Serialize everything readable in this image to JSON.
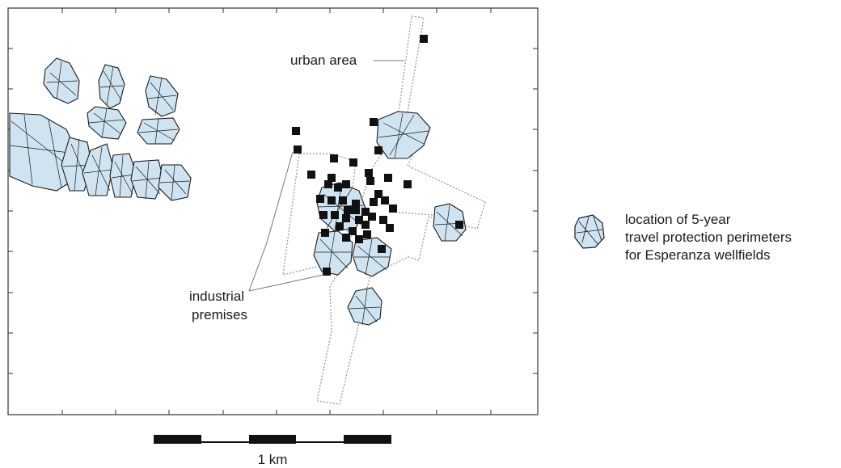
{
  "labels": {
    "urban_area": "urban area",
    "industrial_line1": "industrial",
    "industrial_line2": "premises"
  },
  "legend": {
    "line1": "location of 5-year",
    "line2": "travel protection perimeters",
    "line3": "for Esperanza wellfields"
  },
  "scale_bar": {
    "label": "1 km"
  },
  "colors": {
    "perimeter_fill": "#cfe3f1",
    "perimeter_stroke": "#1a1a1a",
    "premises": "#111111",
    "urban_boundary": "#9a9a9a",
    "frame": "#333333"
  }
}
